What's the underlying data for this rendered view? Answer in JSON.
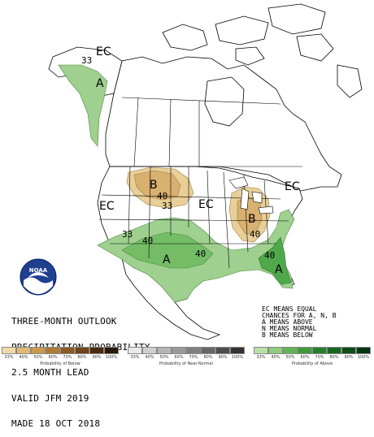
{
  "map": {
    "labels": {
      "ec_alaska": "EC",
      "ec_west": "EC",
      "ec_central": "EC",
      "ec_east": "EC",
      "a_alaska": "A",
      "a_south": "A",
      "a_southeast": "A",
      "b_northplains": "B",
      "b_ohio": "B",
      "c33_alaska": "33",
      "c40_northplains": "40",
      "c33_northplains": "33",
      "c33_south": "33",
      "c40_south": "40",
      "c40_southeast": "40",
      "c40_ohio": "40"
    },
    "colors": {
      "above": "#9fd08f",
      "above_dark": "#4fa84a",
      "below": "#dcb979",
      "land": "#ffffff",
      "border": "#000000"
    }
  },
  "caption": {
    "line1": "THREE-MONTH OUTLOOK",
    "line2": "PRECIPITATION PROBABILITY",
    "line3": "2.5 MONTH LEAD",
    "line4": "VALID JFM 2019",
    "line5": "MADE 18 OCT 2018"
  },
  "legend_key": {
    "line1": "EC MEANS EQUAL",
    "line2": "CHANCES FOR A, N, B",
    "line3": "A MEANS ABOVE",
    "line4": "N MEANS NORMAL",
    "line5": "B MEANS BELOW"
  },
  "logo": {
    "text": "NOAA"
  },
  "scales": [
    {
      "title": "Probability of Below",
      "ticks": [
        "33%",
        "40%",
        "50%",
        "60%",
        "70%",
        "80%",
        "90%",
        "100%"
      ],
      "colors": [
        "#f0d9a8",
        "#e0b870",
        "#c99a4a",
        "#b07a34",
        "#8a5a22",
        "#6e4418",
        "#4a2a0c",
        "#2c1806"
      ]
    },
    {
      "title": "Probability of Near-Normal",
      "ticks": [
        "33%",
        "40%",
        "50%",
        "60%",
        "70%",
        "80%",
        "90%",
        "100%"
      ],
      "colors": [
        "#e8e8e8",
        "#cfcfcf",
        "#b5b5b5",
        "#9a9a9a",
        "#808080",
        "#666666",
        "#4d4d4d",
        "#333333"
      ]
    },
    {
      "title": "Probability of Above",
      "ticks": [
        "33%",
        "40%",
        "50%",
        "60%",
        "70%",
        "80%",
        "90%",
        "100%"
      ],
      "colors": [
        "#b8e0a8",
        "#8fcc7c",
        "#62b556",
        "#3d9c3a",
        "#247f2c",
        "#166620",
        "#0e4d16",
        "#073410"
      ]
    }
  ]
}
